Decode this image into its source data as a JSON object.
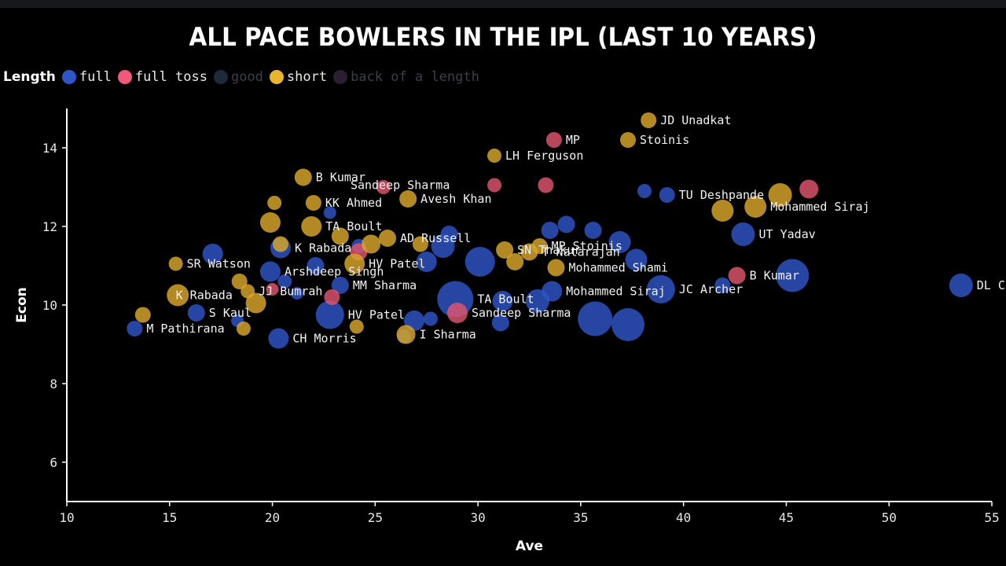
{
  "title": "ALL PACE BOWLERS IN THE IPL (LAST 10 YEARS)",
  "legend": {
    "title": "Length",
    "items": [
      {
        "label": "full",
        "color": "#2f55c8",
        "active": true
      },
      {
        "label": "full toss",
        "color": "#f05a7a",
        "active": true
      },
      {
        "label": "good",
        "color": "#1e2a3a",
        "active": false
      },
      {
        "label": "short",
        "color": "#e8b52e",
        "active": true
      },
      {
        "label": "back of a length",
        "color": "#2a1e30",
        "active": false
      }
    ]
  },
  "chart_data": {
    "type": "scatter",
    "title": "ALL PACE BOWLERS IN THE IPL (LAST 10 YEARS)",
    "xlabel": "Ave",
    "ylabel": "Econ",
    "xlim": [
      10,
      55
    ],
    "ylim": [
      5,
      15
    ],
    "xticks": [
      10,
      15,
      20,
      25,
      30,
      35,
      40,
      45,
      50,
      55
    ],
    "yticks": [
      6,
      8,
      10,
      12,
      14
    ],
    "colors": {
      "full": "#2f55c8",
      "full toss": "#e0556f",
      "short": "#d9a72a"
    },
    "points": [
      {
        "x": 13.3,
        "y": 9.4,
        "size": 10,
        "cat": "full",
        "label": "M Pathirana"
      },
      {
        "x": 16.3,
        "y": 9.8,
        "size": 11,
        "cat": "full",
        "label": "S Kaul"
      },
      {
        "x": 17.1,
        "y": 11.3,
        "size": 13,
        "cat": "full",
        "label": ""
      },
      {
        "x": 18.3,
        "y": 9.6,
        "size": 8,
        "cat": "full",
        "label": ""
      },
      {
        "x": 19.9,
        "y": 10.85,
        "size": 13,
        "cat": "full",
        "label": "Arshdeep Singh"
      },
      {
        "x": 20.4,
        "y": 11.45,
        "size": 13,
        "cat": "full",
        "label": "K Rabada"
      },
      {
        "x": 20.3,
        "y": 9.15,
        "size": 13,
        "cat": "full",
        "label": "CH Morris"
      },
      {
        "x": 20.6,
        "y": 10.6,
        "size": 9,
        "cat": "full",
        "label": ""
      },
      {
        "x": 21.2,
        "y": 10.3,
        "size": 8,
        "cat": "full",
        "label": ""
      },
      {
        "x": 22.1,
        "y": 11.0,
        "size": 11,
        "cat": "full",
        "label": ""
      },
      {
        "x": 22.8,
        "y": 12.35,
        "size": 8,
        "cat": "full",
        "label": ""
      },
      {
        "x": 22.8,
        "y": 9.75,
        "size": 18,
        "cat": "full",
        "label": "HV Patel"
      },
      {
        "x": 23.3,
        "y": 10.5,
        "size": 11,
        "cat": "full",
        "label": "MM Sharma"
      },
      {
        "x": 24.2,
        "y": 11.5,
        "size": 9,
        "cat": "full",
        "label": ""
      },
      {
        "x": 26.4,
        "y": 9.2,
        "size": 9,
        "cat": "full",
        "label": ""
      },
      {
        "x": 26.9,
        "y": 9.6,
        "size": 13,
        "cat": "full",
        "label": ""
      },
      {
        "x": 27.5,
        "y": 11.1,
        "size": 13,
        "cat": "full",
        "label": ""
      },
      {
        "x": 27.7,
        "y": 9.65,
        "size": 9,
        "cat": "full",
        "label": ""
      },
      {
        "x": 28.3,
        "y": 11.5,
        "size": 15,
        "cat": "full",
        "label": ""
      },
      {
        "x": 28.6,
        "y": 11.8,
        "size": 11,
        "cat": "full",
        "label": ""
      },
      {
        "x": 28.9,
        "y": 10.15,
        "size": 23,
        "cat": "full",
        "label": "TA Boult"
      },
      {
        "x": 30.1,
        "y": 11.1,
        "size": 19,
        "cat": "full",
        "label": ""
      },
      {
        "x": 31.2,
        "y": 10.1,
        "size": 13,
        "cat": "full",
        "label": ""
      },
      {
        "x": 31.1,
        "y": 9.55,
        "size": 11,
        "cat": "full",
        "label": ""
      },
      {
        "x": 32.9,
        "y": 10.1,
        "size": 15,
        "cat": "full",
        "label": ""
      },
      {
        "x": 33.6,
        "y": 10.35,
        "size": 13,
        "cat": "full",
        "label": "Mohammed Siraj"
      },
      {
        "x": 33.5,
        "y": 11.9,
        "size": 11,
        "cat": "full",
        "label": ""
      },
      {
        "x": 34.3,
        "y": 12.05,
        "size": 11,
        "cat": "full",
        "label": ""
      },
      {
        "x": 35.6,
        "y": 11.9,
        "size": 11,
        "cat": "full",
        "label": ""
      },
      {
        "x": 35.7,
        "y": 9.65,
        "size": 22,
        "cat": "full",
        "label": ""
      },
      {
        "x": 36.9,
        "y": 11.6,
        "size": 14,
        "cat": "full",
        "label": ""
      },
      {
        "x": 37.3,
        "y": 9.5,
        "size": 21,
        "cat": "full",
        "label": ""
      },
      {
        "x": 37.7,
        "y": 11.15,
        "size": 14,
        "cat": "full",
        "label": ""
      },
      {
        "x": 38.1,
        "y": 12.9,
        "size": 9,
        "cat": "full",
        "label": ""
      },
      {
        "x": 38.9,
        "y": 10.4,
        "size": 18,
        "cat": "full",
        "label": "JC Archer"
      },
      {
        "x": 39.2,
        "y": 12.8,
        "size": 10,
        "cat": "full",
        "label": "TU Deshpande"
      },
      {
        "x": 41.9,
        "y": 10.5,
        "size": 10,
        "cat": "full",
        "label": ""
      },
      {
        "x": 42.9,
        "y": 11.8,
        "size": 15,
        "cat": "full",
        "label": "UT Yadav"
      },
      {
        "x": 45.3,
        "y": 10.75,
        "size": 21,
        "cat": "full",
        "label": ""
      },
      {
        "x": 53.5,
        "y": 10.5,
        "size": 15,
        "cat": "full",
        "label": "DL Chahar"
      },
      {
        "x": 20.0,
        "y": 10.4,
        "size": 8,
        "cat": "full toss",
        "label": ""
      },
      {
        "x": 22.9,
        "y": 10.2,
        "size": 10,
        "cat": "full toss",
        "label": ""
      },
      {
        "x": 24.2,
        "y": 11.35,
        "size": 11,
        "cat": "full toss",
        "label": ""
      },
      {
        "x": 25.4,
        "y": 13.0,
        "size": 9,
        "cat": "full toss",
        "label": ""
      },
      {
        "x": 29.0,
        "y": 9.8,
        "size": 13,
        "cat": "full toss",
        "label": "Sandeep Sharma"
      },
      {
        "x": 30.8,
        "y": 13.05,
        "size": 9,
        "cat": "full toss",
        "label": ""
      },
      {
        "x": 33.3,
        "y": 13.05,
        "size": 10,
        "cat": "full toss",
        "label": ""
      },
      {
        "x": 33.7,
        "y": 14.2,
        "size": 10,
        "cat": "full toss",
        "label": "MP"
      },
      {
        "x": 42.6,
        "y": 10.75,
        "size": 11,
        "cat": "full toss",
        "label": "B Kumar"
      },
      {
        "x": 46.1,
        "y": 12.95,
        "size": 12,
        "cat": "full toss",
        "label": ""
      },
      {
        "x": 13.7,
        "y": 9.75,
        "size": 10,
        "cat": "short",
        "label": ""
      },
      {
        "x": 15.3,
        "y": 11.05,
        "size": 9,
        "cat": "short",
        "label": "SR Watson"
      },
      {
        "x": 15.4,
        "y": 10.25,
        "size": 14,
        "cat": "short",
        "label": ""
      },
      {
        "x": 18.4,
        "y": 10.6,
        "size": 10,
        "cat": "short",
        "label": ""
      },
      {
        "x": 18.6,
        "y": 9.4,
        "size": 9,
        "cat": "short",
        "label": ""
      },
      {
        "x": 19.2,
        "y": 10.05,
        "size": 13,
        "cat": "short",
        "label": ""
      },
      {
        "x": 19.9,
        "y": 12.1,
        "size": 13,
        "cat": "short",
        "label": ""
      },
      {
        "x": 20.1,
        "y": 12.6,
        "size": 9,
        "cat": "short",
        "label": ""
      },
      {
        "x": 20.4,
        "y": 11.55,
        "size": 10,
        "cat": "short",
        "label": ""
      },
      {
        "x": 21.5,
        "y": 13.25,
        "size": 11,
        "cat": "short",
        "label": "B Kumar"
      },
      {
        "x": 21.9,
        "y": 12.0,
        "size": 13,
        "cat": "short",
        "label": "TA Boult"
      },
      {
        "x": 22.0,
        "y": 12.6,
        "size": 10,
        "cat": "short",
        "label": "KK Ahmed"
      },
      {
        "x": 23.3,
        "y": 11.75,
        "size": 11,
        "cat": "short",
        "label": ""
      },
      {
        "x": 24.0,
        "y": 11.05,
        "size": 13,
        "cat": "short",
        "label": "HV Patel"
      },
      {
        "x": 24.1,
        "y": 9.45,
        "size": 9,
        "cat": "short",
        "label": ""
      },
      {
        "x": 24.8,
        "y": 11.55,
        "size": 12,
        "cat": "short",
        "label": ""
      },
      {
        "x": 25.6,
        "y": 11.7,
        "size": 11,
        "cat": "short",
        "label": "AD Russell"
      },
      {
        "x": 26.5,
        "y": 9.25,
        "size": 12,
        "cat": "short",
        "label": "I Sharma"
      },
      {
        "x": 26.6,
        "y": 12.7,
        "size": 11,
        "cat": "short",
        "label": "Avesh Khan"
      },
      {
        "x": 27.2,
        "y": 11.55,
        "size": 10,
        "cat": "short",
        "label": ""
      },
      {
        "x": 30.8,
        "y": 13.8,
        "size": 9,
        "cat": "short",
        "label": "LH Ferguson"
      },
      {
        "x": 31.3,
        "y": 11.4,
        "size": 11,
        "cat": "short",
        "label": "SN Thakur"
      },
      {
        "x": 31.8,
        "y": 11.1,
        "size": 11,
        "cat": "short",
        "label": ""
      },
      {
        "x": 32.5,
        "y": 11.35,
        "size": 11,
        "cat": "short",
        "label": "T Natarajan"
      },
      {
        "x": 33.0,
        "y": 11.5,
        "size": 10,
        "cat": "short",
        "label": "MP Stoinis"
      },
      {
        "x": 33.8,
        "y": 10.95,
        "size": 11,
        "cat": "short",
        "label": "Mohammed Shami"
      },
      {
        "x": 37.3,
        "y": 14.2,
        "size": 10,
        "cat": "short",
        "label": "Stoinis"
      },
      {
        "x": 38.3,
        "y": 14.7,
        "size": 10,
        "cat": "short",
        "label": "JD Unadkat"
      },
      {
        "x": 41.9,
        "y": 12.4,
        "size": 14,
        "cat": "short",
        "label": ""
      },
      {
        "x": 43.5,
        "y": 12.5,
        "size": 14,
        "cat": "short",
        "label": "Mohammed Siraj"
      },
      {
        "x": 44.7,
        "y": 12.8,
        "size": 15,
        "cat": "short",
        "label": ""
      },
      {
        "x": 18.8,
        "y": 10.35,
        "size": 9,
        "cat": "short",
        "label": "JJ Bumrah"
      },
      {
        "x": 15.3,
        "y": 10.25,
        "size": 1,
        "cat": "short",
        "label": "K Rabada"
      },
      {
        "x": 23.8,
        "y": 13.05,
        "size": 1,
        "cat": "full toss",
        "label": "Sandeep Sharma"
      }
    ]
  }
}
